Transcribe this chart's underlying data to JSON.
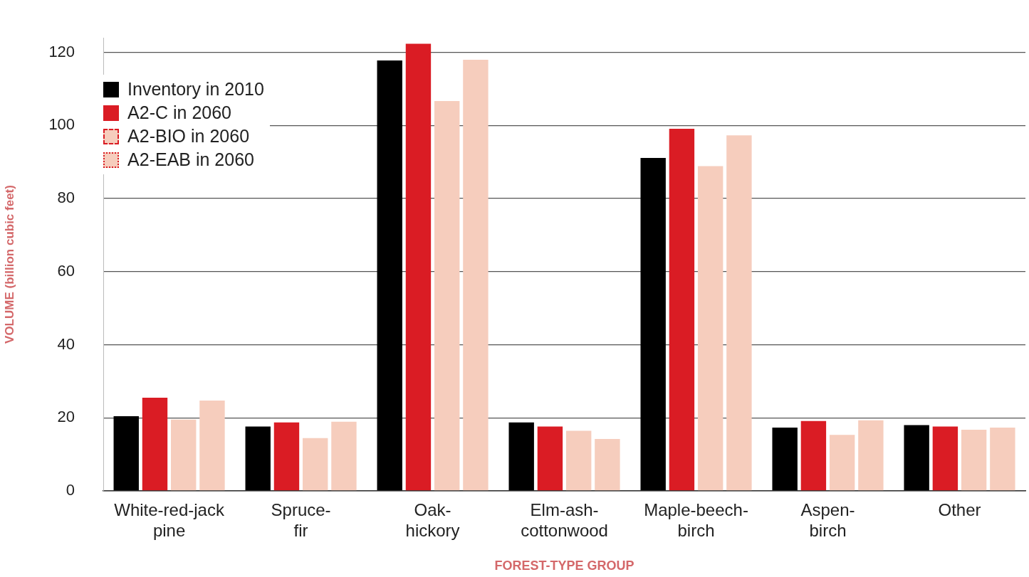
{
  "chart_data": {
    "type": "bar",
    "xlabel": "FOREST-TYPE GROUP",
    "ylabel": "VOLUME (billion cubic feet)",
    "categories": [
      "White-red-jack pine",
      "Spruce-fir",
      "Oak-hickory",
      "Elm-ash-cottonwood",
      "Maple-beech-birch",
      "Aspen-birch",
      "Other"
    ],
    "series": [
      {
        "name": "Inventory in 2010",
        "color": "#000000",
        "values": [
          20.4,
          17.6,
          117.8,
          18.7,
          91.1,
          17.3,
          18.0
        ]
      },
      {
        "name": "A2-C in 2060",
        "color": "#da1c24",
        "values": [
          25.5,
          18.7,
          122.4,
          17.6,
          99.1,
          19.1,
          17.6
        ]
      },
      {
        "name": "A2-BIO in 2060",
        "color": "#f6cdbd",
        "line_style": "dashed",
        "values": [
          19.5,
          14.4,
          106.7,
          16.4,
          88.9,
          15.3,
          16.7
        ]
      },
      {
        "name": "A2-EAB in 2060",
        "color": "#f6cdbd",
        "line_style": "dotted",
        "values": [
          24.7,
          18.9,
          118.0,
          14.2,
          97.3,
          19.3,
          17.3
        ]
      }
    ],
    "ylim": [
      0,
      124
    ],
    "yticks": [
      0,
      20,
      40,
      60,
      80,
      100,
      120
    ],
    "grid": "y",
    "legend": "top left"
  }
}
